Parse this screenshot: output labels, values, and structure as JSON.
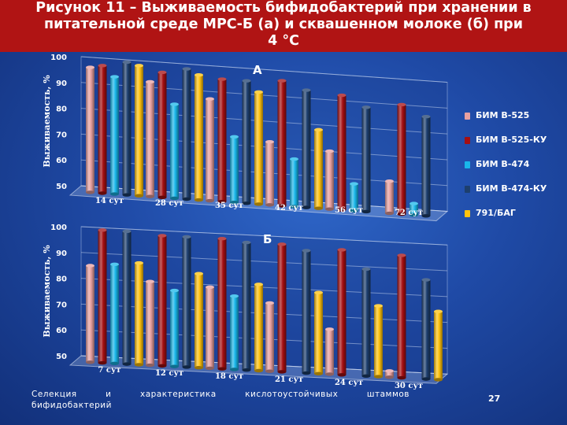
{
  "title": {
    "line1": "Рисунок 11 – Выживаемость бифидобактерий при хранении в",
    "line2": "питательной среде МРС-Б (а) и сквашенном молоке (б) при",
    "line3": "4 °С"
  },
  "footer": {
    "line1": "Селекция и характеристика кислотоустойчивых штаммов",
    "line2": "бифидобактерий"
  },
  "page_number": "27",
  "legend": [
    {
      "name": "БИМ В-525",
      "color": "#e8a0a0"
    },
    {
      "name": "БИМ В-525-КУ",
      "color": "#a50f12"
    },
    {
      "name": "БИМ В-474",
      "color": "#19b7ea"
    },
    {
      "name": "БИМ В-474-КУ",
      "color": "#1d3f6e"
    },
    {
      "name": "791/БАГ",
      "color": "#ffc20e"
    }
  ],
  "chart_data": [
    {
      "type": "bar",
      "panel_label": "А",
      "ylabel": "Выживаемость, %",
      "ylim": [
        50,
        100
      ],
      "yticks": [
        "50",
        "60",
        "70",
        "80",
        "90",
        "100"
      ],
      "categories": [
        "14 сут",
        "28 сут",
        "35 сут",
        "42 сут",
        "56 сут",
        "72 сут"
      ],
      "series": [
        {
          "name": "БИМ В-525",
          "values": [
            96,
            92,
            87,
            72,
            70,
            60
          ]
        },
        {
          "name": "БИМ В-525-КУ",
          "values": [
            97,
            96,
            95,
            96,
            92,
            90
          ]
        },
        {
          "name": "БИМ В-474",
          "values": [
            93,
            84,
            73,
            66,
            58,
            52
          ]
        },
        {
          "name": "БИМ В-474-КУ",
          "values": [
            99,
            98,
            95,
            93,
            88,
            86
          ]
        },
        {
          "name": "791/БАГ",
          "values": [
            98,
            96,
            91,
            78,
            null,
            null
          ]
        }
      ]
    },
    {
      "type": "bar",
      "panel_label": "Б",
      "ylabel": "Выживаемость, %",
      "ylim": [
        50,
        100
      ],
      "yticks": [
        "50",
        "60",
        "70",
        "80",
        "90",
        "100"
      ],
      "categories": [
        "7 сут",
        "12 сут",
        "18 сут",
        "21 сут",
        "24 сут",
        "30 сут"
      ],
      "series": [
        {
          "name": "БИМ В-525",
          "values": [
            85,
            80,
            79,
            74,
            65,
            50
          ]
        },
        {
          "name": "БИМ В-525-КУ",
          "values": [
            99,
            98,
            98,
            97,
            96,
            95
          ]
        },
        {
          "name": "БИМ В-474",
          "values": [
            86,
            77,
            76,
            null,
            null,
            null
          ]
        },
        {
          "name": "БИМ В-474-КУ",
          "values": [
            99,
            98,
            97,
            95,
            89,
            86
          ]
        },
        {
          "name": "791/БАГ",
          "values": [
            87,
            84,
            81,
            79,
            75,
            74
          ]
        }
      ]
    }
  ]
}
